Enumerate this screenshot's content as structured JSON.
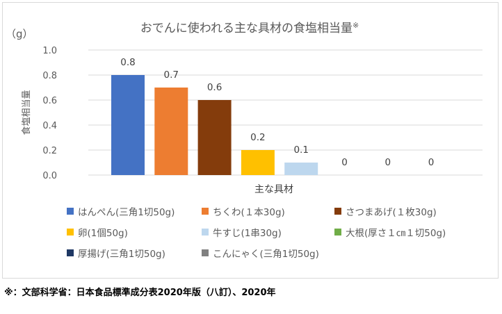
{
  "chart_data": {
    "type": "bar",
    "title": "おでんに使われる主な具材の食塩相当量",
    "title_mark": "※",
    "unit_label": "（g）",
    "ylabel": "食塩相当量",
    "xlabel": "主な具材",
    "ylim": [
      0,
      1.0
    ],
    "ytick_labels": [
      "0.0",
      "0.2",
      "0.4",
      "0.6",
      "0.8",
      "1.0"
    ],
    "yticks": [
      0,
      0.2,
      0.4,
      0.6,
      0.8,
      1.0
    ],
    "grid": true,
    "legend_position": "bottom",
    "categories": [
      "はんぺん(三角1切50g)",
      "ちくわ(１本30g)",
      "さつまあげ(１枚30g)",
      "卵(1個50g)",
      "牛すじ(1串30g)",
      "大根(厚さ１㎝１切50g)",
      "厚揚げ(三角1切50g)",
      "こんにゃく(三角1切50g)"
    ],
    "values": [
      0.8,
      0.7,
      0.6,
      0.2,
      0.1,
      0,
      0,
      0
    ],
    "value_labels": [
      "0.8",
      "0.7",
      "0.6",
      "0.2",
      "0.1",
      "0",
      "0",
      "0"
    ],
    "colors": [
      "#4472c4",
      "#ed7d31",
      "#843c0c",
      "#ffc000",
      "#bdd7ee",
      "#70ad47",
      "#1f3864",
      "#808080"
    ]
  },
  "footnote": "※：文部科学省：日本食品標準成分表2020年版（八訂）、2020年"
}
